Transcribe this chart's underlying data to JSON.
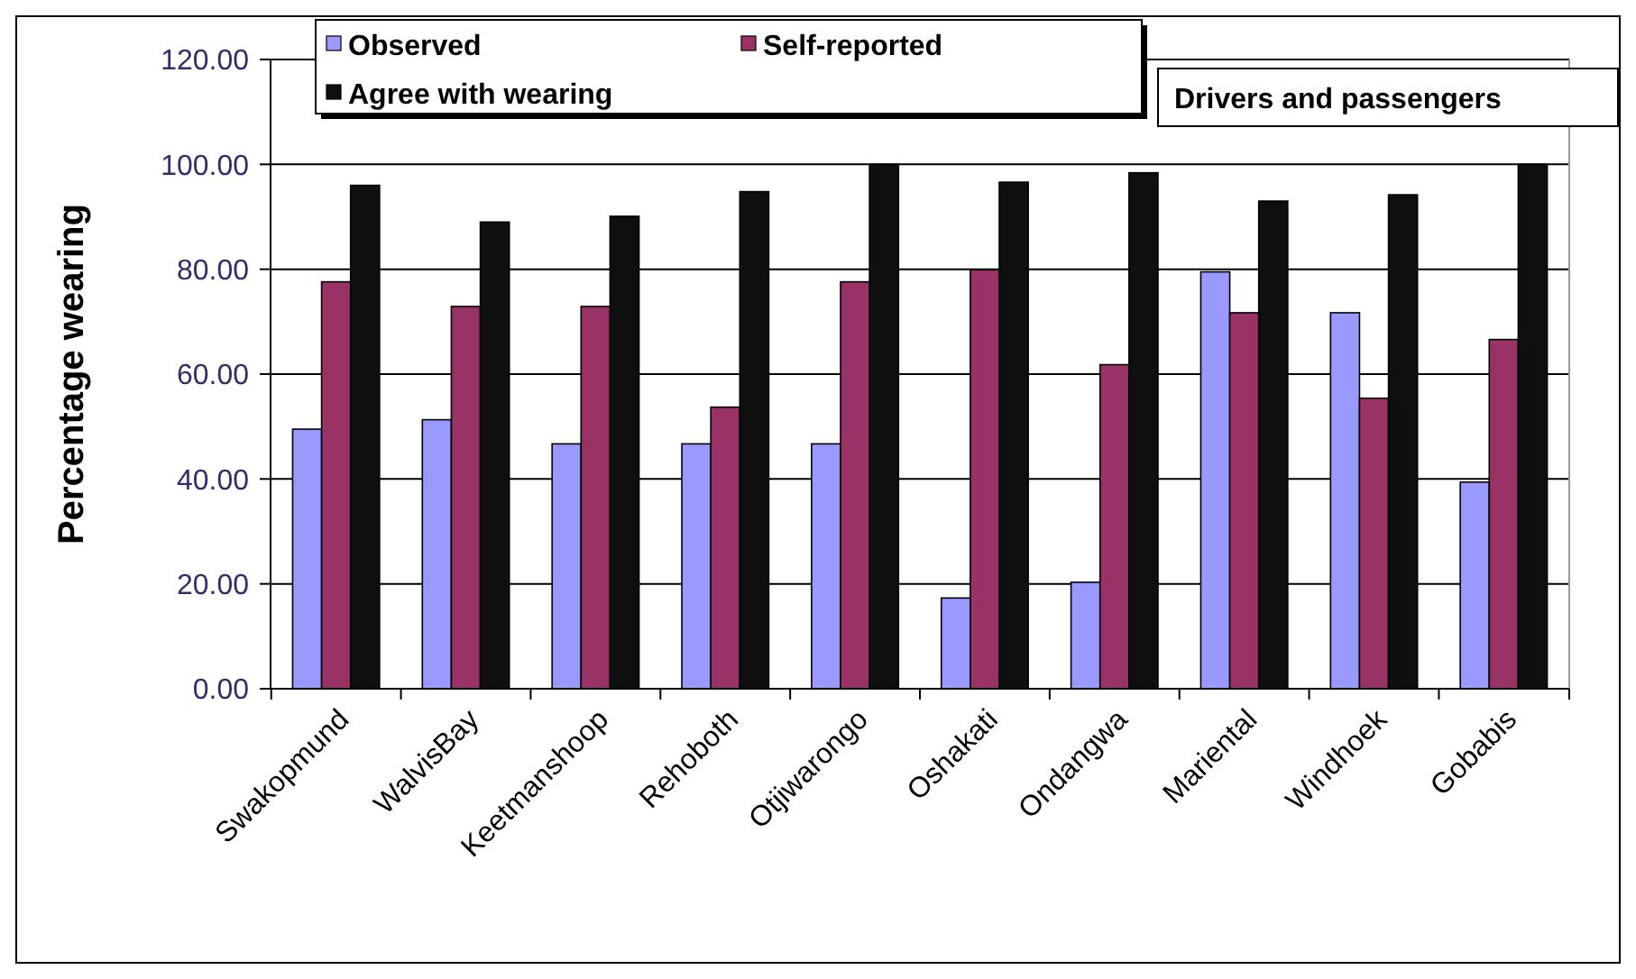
{
  "chart_data": {
    "type": "bar",
    "title": "Drivers and passengers",
    "ylabel": "Percentage wearing",
    "categories": [
      "Swakopmund",
      "WalvisBay",
      "Keetmanshoop",
      "Rehoboth",
      "Otjiwarongo",
      "Oshakati",
      "Ondangwa",
      "Mariental",
      "Windhoek",
      "Gobabis"
    ],
    "series": [
      {
        "name": "Observed",
        "color": "#9999ff",
        "values": [
          49.5,
          51.3,
          46.7,
          46.7,
          46.7,
          17.3,
          20.3,
          79.5,
          71.7,
          39.4
        ]
      },
      {
        "name": "Self-reported",
        "color": "#993366",
        "values": [
          77.6,
          72.9,
          72.9,
          53.7,
          77.6,
          79.9,
          61.8,
          71.7,
          55.4,
          66.6
        ]
      },
      {
        "name": "Agree with wearing",
        "color": "#0f0f0f",
        "values": [
          96.0,
          89.0,
          90.1,
          94.8,
          100,
          96.6,
          98.4,
          93.0,
          94.2,
          100
        ]
      }
    ],
    "ylim": [
      0,
      120
    ],
    "yticks": [
      {
        "value": 0,
        "label": "0.00"
      },
      {
        "value": 20,
        "label": "20.00"
      },
      {
        "value": 40,
        "label": "40.00"
      },
      {
        "value": 60,
        "label": "60.00"
      },
      {
        "value": 80,
        "label": "80.00"
      },
      {
        "value": 100,
        "label": "100.00"
      },
      {
        "value": 120,
        "label": "120.00"
      }
    ],
    "grid": "y",
    "legend": "top left"
  }
}
